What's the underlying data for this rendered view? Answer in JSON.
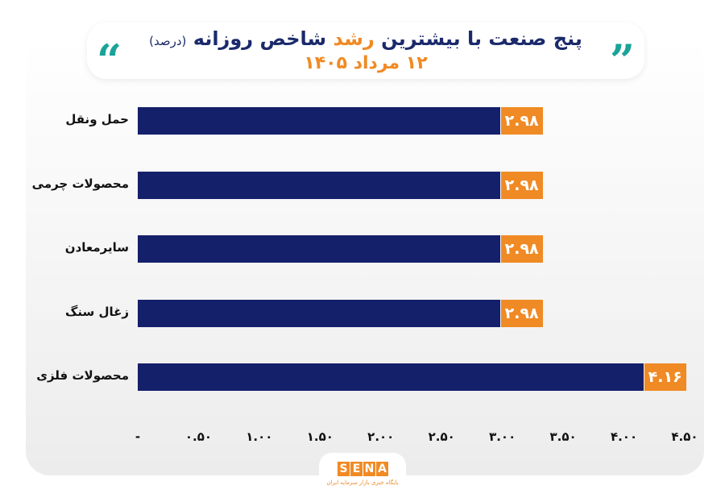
{
  "chart_data": {
    "type": "bar",
    "orientation": "horizontal",
    "title_parts": {
      "before": "پنج صنعت با بیشترین",
      "accent": "رشد",
      "after": "شاخص روزانه",
      "unit": "(درصد)"
    },
    "subtitle": "۱۲ مرداد ۱۴۰۵",
    "categories": [
      "حمل ونقل",
      "محصولات چرمی",
      "سایرمعادن",
      "زغال سنگ",
      "محصولات فلزی"
    ],
    "values": [
      2.98,
      2.98,
      2.98,
      2.98,
      4.16
    ],
    "value_labels": [
      "۲.۹۸",
      "۲.۹۸",
      "۲.۹۸",
      "۲.۹۸",
      "۴.۱۶"
    ],
    "xlim": [
      0,
      4.5
    ],
    "ticks": [
      0,
      0.5,
      1,
      1.5,
      2,
      2.5,
      3,
      3.5,
      4,
      4.5
    ],
    "tick_labels": [
      "-",
      "۰.۵۰",
      "۱.۰۰",
      "۱.۵۰",
      "۲.۰۰",
      "۲.۵۰",
      "۳.۰۰",
      "۳.۵۰",
      "۴.۰۰",
      "۴.۵۰"
    ],
    "grid": false,
    "bar_color": "#15206b",
    "label_color": "#f08a24"
  },
  "logo": {
    "letters": [
      "S",
      "E",
      "N",
      "A"
    ],
    "tagline": "پایگاه خبری بازار سرمایه ایران"
  }
}
